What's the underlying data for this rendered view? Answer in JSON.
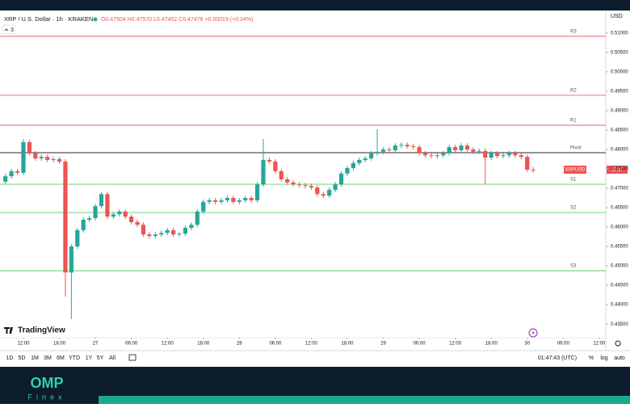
{
  "chart_data": {
    "type": "candlestick",
    "title": "XRP / U.S. Dollar · 1h · KRAKEN",
    "subtitle": "O0.47504 H0.47570 L0.47452 C0.47476 +0.00019 (+0.04%)",
    "indicator_count": "3",
    "currency": "USD",
    "price_tag": "XRPUSD",
    "countdown": "12:17",
    "up_color": "#26a69a",
    "down_color": "#ef5350",
    "grid": false,
    "ylim": [
      0.4315,
      0.5158
    ],
    "yticks": [
      {
        "value": 0.435,
        "label": "0.43500"
      },
      {
        "value": 0.44,
        "label": "0.44000"
      },
      {
        "value": 0.445,
        "label": "0.44500"
      },
      {
        "value": 0.45,
        "label": "0.45000"
      },
      {
        "value": 0.455,
        "label": "0.45500"
      },
      {
        "value": 0.46,
        "label": "0.46000"
      },
      {
        "value": 0.465,
        "label": "0.46500"
      },
      {
        "value": 0.47,
        "label": "0.47000"
      },
      {
        "value": 0.475,
        "label": "0.47500"
      },
      {
        "value": 0.48,
        "label": "0.48000"
      },
      {
        "value": 0.485,
        "label": "0.48500"
      },
      {
        "value": 0.49,
        "label": "0.49000"
      },
      {
        "value": 0.495,
        "label": "0.49500"
      },
      {
        "value": 0.5,
        "label": "0.50000"
      },
      {
        "value": 0.505,
        "label": "0.50500"
      },
      {
        "value": 0.51,
        "label": "0.51000"
      }
    ],
    "xlim": [
      -15.9,
      85.1
    ],
    "xticks": [
      {
        "value": -12,
        "label": "12:00"
      },
      {
        "value": -6,
        "label": "18:00"
      },
      {
        "value": 0,
        "label": "27"
      },
      {
        "value": 6,
        "label": "06:00"
      },
      {
        "value": 12,
        "label": "12:00"
      },
      {
        "value": 18,
        "label": "18:00"
      },
      {
        "value": 24,
        "label": "28"
      },
      {
        "value": 30,
        "label": "06:00"
      },
      {
        "value": 36,
        "label": "12:00"
      },
      {
        "value": 42,
        "label": "18:00"
      },
      {
        "value": 48,
        "label": "29"
      },
      {
        "value": 54,
        "label": "06:00"
      },
      {
        "value": 60,
        "label": "12:00"
      },
      {
        "value": 66,
        "label": "18:00"
      },
      {
        "value": 72,
        "label": "30"
      },
      {
        "value": 78,
        "label": "06:00"
      },
      {
        "value": 84,
        "label": "12:00"
      }
    ],
    "levels": [
      {
        "name": "R3",
        "value": 0.50917,
        "color": "#f08080"
      },
      {
        "name": "R2",
        "value": 0.49396,
        "color": "#f08080"
      },
      {
        "name": "R1",
        "value": 0.48625,
        "color": "#f08080"
      },
      {
        "name": "Pivot",
        "value": 0.47917,
        "color": "#555555"
      },
      {
        "name": "S1",
        "value": 0.47104,
        "color": "#7ddc86"
      },
      {
        "name": "S2",
        "value": 0.46375,
        "color": "#7ddc86"
      },
      {
        "name": "S3",
        "value": 0.44875,
        "color": "#7ddc86"
      }
    ],
    "x": [
      -15,
      -14,
      -13,
      -12,
      -11,
      -10,
      -9,
      -8,
      -7,
      -6,
      -5,
      -4,
      -3,
      -2,
      -1,
      0,
      1,
      2,
      3,
      4,
      5,
      6,
      7,
      8,
      9,
      10,
      11,
      12,
      13,
      14,
      15,
      16,
      17,
      18,
      19,
      20,
      21,
      22,
      23,
      24,
      25,
      26,
      27,
      28,
      29,
      30,
      31,
      32,
      33,
      34,
      35,
      36,
      37,
      38,
      39,
      40,
      41,
      42,
      43,
      44,
      45,
      46,
      47,
      48,
      49,
      50,
      51,
      52,
      53,
      54,
      55,
      56,
      57,
      58,
      59,
      60,
      61,
      62,
      63,
      64,
      65,
      66,
      67,
      68,
      69,
      70,
      71,
      72,
      73
    ],
    "open": [
      0.4717,
      0.4731,
      0.4744,
      0.474,
      0.4819,
      0.479,
      0.4777,
      0.4781,
      0.4773,
      0.4775,
      0.4769,
      0.4483,
      0.455,
      0.4592,
      0.4619,
      0.4623,
      0.4654,
      0.4685,
      0.4627,
      0.4633,
      0.464,
      0.4627,
      0.4613,
      0.4606,
      0.4581,
      0.4577,
      0.4581,
      0.4585,
      0.4592,
      0.4581,
      0.4583,
      0.4598,
      0.4606,
      0.464,
      0.4665,
      0.4669,
      0.4665,
      0.4669,
      0.4675,
      0.4665,
      0.4669,
      0.4675,
      0.4669,
      0.471,
      0.4773,
      0.4769,
      0.4744,
      0.4723,
      0.4715,
      0.471,
      0.4708,
      0.4706,
      0.4702,
      0.4685,
      0.4681,
      0.4696,
      0.471,
      0.4738,
      0.4752,
      0.4765,
      0.4773,
      0.4777,
      0.479,
      0.4794,
      0.48,
      0.4798,
      0.481,
      0.4812,
      0.4808,
      0.4806,
      0.479,
      0.4785,
      0.4783,
      0.4785,
      0.479,
      0.4806,
      0.4798,
      0.481,
      0.48,
      0.4794,
      0.4796,
      0.4779,
      0.479,
      0.4783,
      0.4785,
      0.479,
      0.4785,
      0.4781,
      0.4748
    ],
    "high": [
      0.4737,
      0.475,
      0.475,
      0.4827,
      0.4825,
      0.4796,
      0.4787,
      0.4787,
      0.4781,
      0.4781,
      0.4775,
      0.4556,
      0.4598,
      0.4625,
      0.4629,
      0.466,
      0.4691,
      0.4691,
      0.4639,
      0.4646,
      0.4646,
      0.4633,
      0.4619,
      0.4612,
      0.4587,
      0.4587,
      0.4591,
      0.4598,
      0.4598,
      0.4587,
      0.4604,
      0.4612,
      0.4646,
      0.4671,
      0.4675,
      0.4675,
      0.4675,
      0.4681,
      0.4681,
      0.4675,
      0.4681,
      0.4681,
      0.4716,
      0.4827,
      0.4779,
      0.4775,
      0.475,
      0.4729,
      0.4721,
      0.4716,
      0.4714,
      0.4712,
      0.4708,
      0.4691,
      0.4702,
      0.4716,
      0.4744,
      0.4758,
      0.4771,
      0.4779,
      0.4783,
      0.4796,
      0.4852,
      0.4806,
      0.4806,
      0.4816,
      0.4818,
      0.4818,
      0.4814,
      0.4812,
      0.4796,
      0.4791,
      0.4791,
      0.4796,
      0.4812,
      0.4812,
      0.4816,
      0.4816,
      0.4806,
      0.4802,
      0.4802,
      0.4796,
      0.4796,
      0.4791,
      0.4796,
      0.4796,
      0.4791,
      0.4787,
      0.4754
    ],
    "low": [
      0.4711,
      0.4725,
      0.4734,
      0.4734,
      0.4784,
      0.4771,
      0.4771,
      0.4767,
      0.4767,
      0.4763,
      0.4421,
      0.4363,
      0.4544,
      0.4586,
      0.4613,
      0.4617,
      0.4648,
      0.4621,
      0.4621,
      0.4627,
      0.4621,
      0.4607,
      0.46,
      0.4575,
      0.4571,
      0.4571,
      0.4575,
      0.4579,
      0.4575,
      0.4575,
      0.4577,
      0.4592,
      0.46,
      0.4634,
      0.4659,
      0.4659,
      0.4659,
      0.4663,
      0.4659,
      0.4659,
      0.4663,
      0.4663,
      0.4663,
      0.4704,
      0.4763,
      0.4738,
      0.4717,
      0.4709,
      0.4704,
      0.4702,
      0.47,
      0.4696,
      0.4679,
      0.4675,
      0.4675,
      0.469,
      0.4704,
      0.4732,
      0.4746,
      0.4759,
      0.4767,
      0.4771,
      0.4784,
      0.4788,
      0.4792,
      0.4792,
      0.4804,
      0.4802,
      0.48,
      0.4784,
      0.4779,
      0.4777,
      0.4777,
      0.4779,
      0.4784,
      0.4792,
      0.4792,
      0.4794,
      0.4788,
      0.4788,
      0.471,
      0.4773,
      0.4777,
      0.4777,
      0.4779,
      0.4779,
      0.4775,
      0.4742,
      0.474
    ],
    "close": [
      0.4731,
      0.4744,
      0.474,
      0.4819,
      0.479,
      0.4777,
      0.4781,
      0.4773,
      0.4775,
      0.4769,
      0.4483,
      0.455,
      0.4592,
      0.4619,
      0.4623,
      0.4654,
      0.4685,
      0.4627,
      0.4633,
      0.464,
      0.4627,
      0.4613,
      0.4606,
      0.4581,
      0.4577,
      0.4581,
      0.4585,
      0.4592,
      0.4581,
      0.4583,
      0.4598,
      0.4606,
      0.464,
      0.4665,
      0.4669,
      0.4665,
      0.4669,
      0.4675,
      0.4665,
      0.4669,
      0.4675,
      0.4669,
      0.471,
      0.4773,
      0.4769,
      0.4744,
      0.4723,
      0.4715,
      0.471,
      0.4708,
      0.4706,
      0.4702,
      0.4685,
      0.4681,
      0.4696,
      0.471,
      0.4738,
      0.4752,
      0.4765,
      0.4773,
      0.4777,
      0.479,
      0.4794,
      0.48,
      0.4798,
      0.481,
      0.4812,
      0.4808,
      0.4806,
      0.479,
      0.4785,
      0.4783,
      0.4785,
      0.479,
      0.4806,
      0.4798,
      0.481,
      0.48,
      0.4794,
      0.4796,
      0.4779,
      0.479,
      0.4783,
      0.4785,
      0.479,
      0.4785,
      0.4781,
      0.4748,
      0.4746
    ]
  },
  "toolbar": {
    "ranges": [
      "1D",
      "5D",
      "1M",
      "3M",
      "6M",
      "YTD",
      "1Y",
      "5Y",
      "All"
    ],
    "clock": "01:47:43 (UTC)",
    "percent": "%",
    "log": "log",
    "auto": "auto"
  },
  "branding": {
    "watermark": "TradingView",
    "logo": "OMP",
    "logo_sub": "Finex"
  }
}
